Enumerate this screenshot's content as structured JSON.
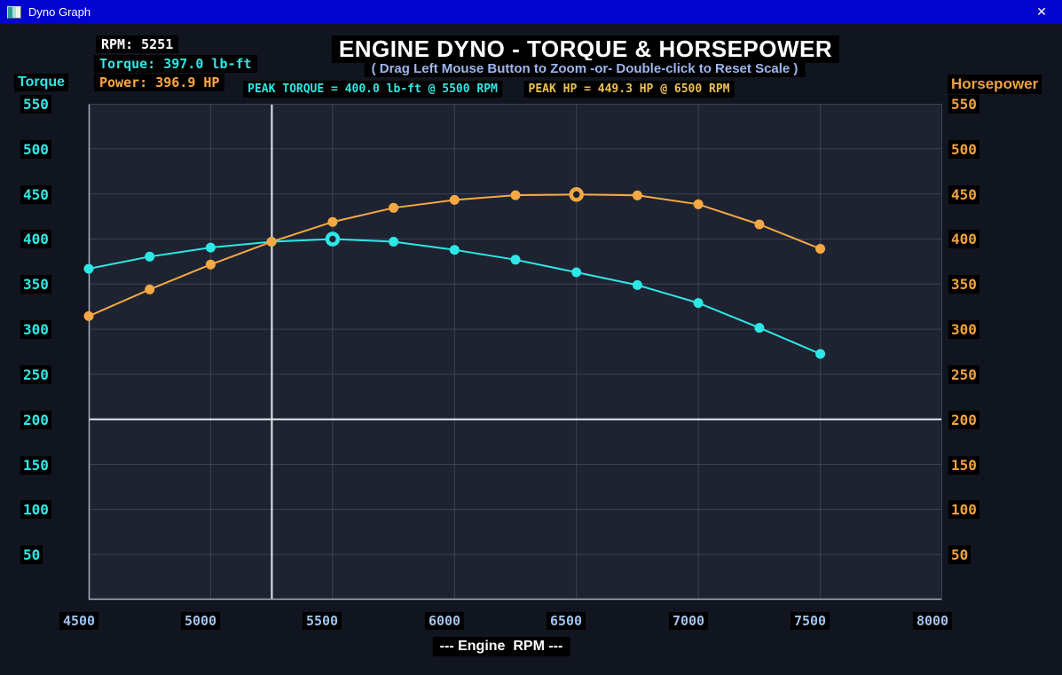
{
  "window": {
    "title": "Dyno Graph",
    "close_glyph": "✕"
  },
  "readout": {
    "rpm": "RPM: 5251",
    "torque": "Torque: 397.0 lb-ft",
    "power": "Power: 396.9 HP"
  },
  "header": {
    "title": "ENGINE DYNO - TORQUE & HORSEPOWER",
    "subtitle": "( Drag Left Mouse Button to Zoom -or- Double-click to Reset Scale )"
  },
  "peaks": {
    "torque_label": "PEAK TORQUE = 400.0 lb-ft @ 5500 RPM",
    "hp_label": "PEAK HP = 449.3 HP @ 6500 RPM"
  },
  "axes": {
    "left_title": "Torque",
    "right_title": "Horsepower",
    "y_ticks": [
      "550",
      "500",
      "450",
      "400",
      "350",
      "300",
      "250",
      "200",
      "150",
      "100",
      "50"
    ],
    "x_ticks": [
      "4500",
      "5000",
      "5500",
      "6000",
      "6500",
      "7000",
      "7500",
      "8000"
    ],
    "x_axis_label": "--- Engine  RPM ---"
  },
  "colors": {
    "titlebar_bg": "#0303ce",
    "window_bg": "#11151f",
    "label_bg": "#000000",
    "plot_bg": "#1d2331",
    "grid": "#3a4356",
    "plot_border_bright": "#a9b0bf",
    "plot_border_dim": "#3a4356",
    "crosshair": "#e8eaf0",
    "torque_curve": "#2ee8e6",
    "horsepower_curve": "#f6a843",
    "peak_hp_text": "#ecc24e",
    "subtitle_text": "#9db7ee",
    "x_tick_text": "#9fc3f0"
  },
  "chart_data": {
    "type": "line",
    "x": [
      4500,
      4750,
      5000,
      5250,
      5500,
      5750,
      6000,
      6250,
      6500,
      6750,
      7000,
      7250,
      7500
    ],
    "series": [
      {
        "id": "torque",
        "name": "Torque (lb-ft)",
        "color": "#2ee8e6",
        "values": [
          367.0,
          380.5,
          390.5,
          397.0,
          400.0,
          397.0,
          388.0,
          377.0,
          363.1,
          348.9,
          329.0,
          301.5,
          272.5
        ],
        "peak": {
          "rpm": 5500,
          "value": 400.0
        }
      },
      {
        "id": "horsepower",
        "name": "Horsepower (HP)",
        "color": "#f6a843",
        "values": [
          314.5,
          344.1,
          371.7,
          396.9,
          418.9,
          434.6,
          443.3,
          448.6,
          449.3,
          448.4,
          438.5,
          416.2,
          389.1
        ],
        "peak": {
          "rpm": 6500,
          "value": 449.3
        }
      }
    ],
    "xlabel": "--- Engine  RPM ---",
    "ylabel_left": "Torque",
    "ylabel_right": "Horsepower",
    "x_range": [
      4500,
      8000
    ],
    "y_range": [
      0,
      550
    ],
    "x_tick_step": 500,
    "y_tick_step": 50,
    "grid": true,
    "legend": false,
    "crosshair": {
      "rpm": 5251,
      "y_value": 200,
      "torque_at_cursor": 397.0,
      "power_at_cursor": 396.9
    }
  }
}
